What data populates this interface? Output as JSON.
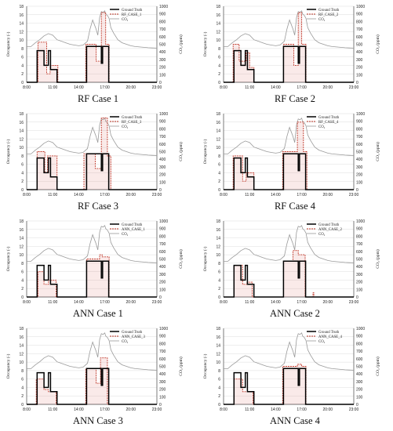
{
  "panels": [
    {
      "label": "RF Case 1",
      "legend": [
        "Ground Truth",
        "RF_CASE_1",
        "CO₂"
      ]
    },
    {
      "label": "RF Case 2",
      "legend": [
        "Ground Truth",
        "RF_CASE_2",
        "CO₂"
      ]
    },
    {
      "label": "RF Case 3",
      "legend": [
        "Ground Truth",
        "RF_CASE_3",
        "CO₂"
      ]
    },
    {
      "label": "RF Case 4",
      "legend": [
        "Ground Truth",
        "RF_CASE_4",
        "CO₂"
      ]
    },
    {
      "label": "ANN Case 1",
      "legend": [
        "Ground Truth",
        "ANN_CASE_1",
        "CO₂"
      ]
    },
    {
      "label": "ANN Case 2",
      "legend": [
        "Ground Truth",
        "ANN_CASE_2",
        "CO₂"
      ]
    },
    {
      "label": "ANN Case 3",
      "legend": [
        "Ground Truth",
        "ANN_CASE_3",
        "CO₂"
      ]
    },
    {
      "label": "ANN Case 4",
      "legend": [
        "Ground Truth",
        "ANN_CASE_4",
        "CO₂"
      ]
    }
  ],
  "chart_data": {
    "type": "line",
    "xlabel": "",
    "ylabel": "Occupancy (-)",
    "y2label": "CO₂ (ppm)",
    "x_ticks": [
      "8:00",
      "11:00",
      "14:00",
      "17:00",
      "20:00",
      "23:00"
    ],
    "x_tick_values": [
      8,
      11,
      14,
      17,
      20,
      23
    ],
    "xlim": [
      8,
      23
    ],
    "ylim": [
      0,
      18
    ],
    "y_ticks": [
      0,
      2,
      4,
      6,
      8,
      10,
      12,
      14,
      16,
      18
    ],
    "y2lim": [
      0,
      1000
    ],
    "y2_ticks": [
      0,
      100,
      200,
      300,
      400,
      500,
      600,
      700,
      800,
      900,
      1000
    ],
    "colors": {
      "ground_truth": "#000000",
      "prediction": "#c0392b",
      "co2": "#9a9a9a",
      "grid": "#dddddd"
    },
    "series": [
      {
        "name": "Ground Truth",
        "x": [
          8,
          9.2,
          9.2,
          10,
          10,
          10.5,
          10.5,
          10.75,
          10.75,
          11.5,
          11.5,
          11.55,
          11.55,
          14.9,
          14.9,
          15.6,
          15.6,
          16.6,
          16.6,
          16.75,
          16.75,
          17.45,
          17.45,
          23
        ],
        "y": [
          0,
          0,
          7.5,
          7.5,
          4,
          4,
          7.5,
          7.5,
          3,
          3,
          0,
          0,
          0,
          0,
          8.5,
          8.5,
          8.5,
          8.5,
          4.5,
          4.5,
          8.5,
          8.5,
          0,
          0
        ]
      },
      {
        "name": "CO₂",
        "x": [
          8,
          8.5,
          9,
          9.5,
          10,
          10.5,
          11,
          11.5,
          12,
          12.5,
          13,
          13.5,
          14,
          14.5,
          15,
          15.3,
          15.6,
          15.8,
          16,
          16.2,
          16.4,
          16.6,
          16.8,
          17,
          17.1,
          17.3,
          17.5,
          17.7,
          18,
          18.5,
          19,
          19.5,
          20,
          20.5,
          21,
          21.5,
          22,
          22.5,
          23
        ],
        "y": [
          470,
          470,
          520,
          560,
          610,
          640,
          620,
          560,
          540,
          520,
          500,
          490,
          480,
          490,
          540,
          700,
          820,
          760,
          700,
          620,
          850,
          930,
          920,
          940,
          900,
          880,
          840,
          720,
          650,
          560,
          520,
          500,
          480,
          470,
          465,
          460,
          455,
          452,
          450
        ]
      }
    ]
  }
}
